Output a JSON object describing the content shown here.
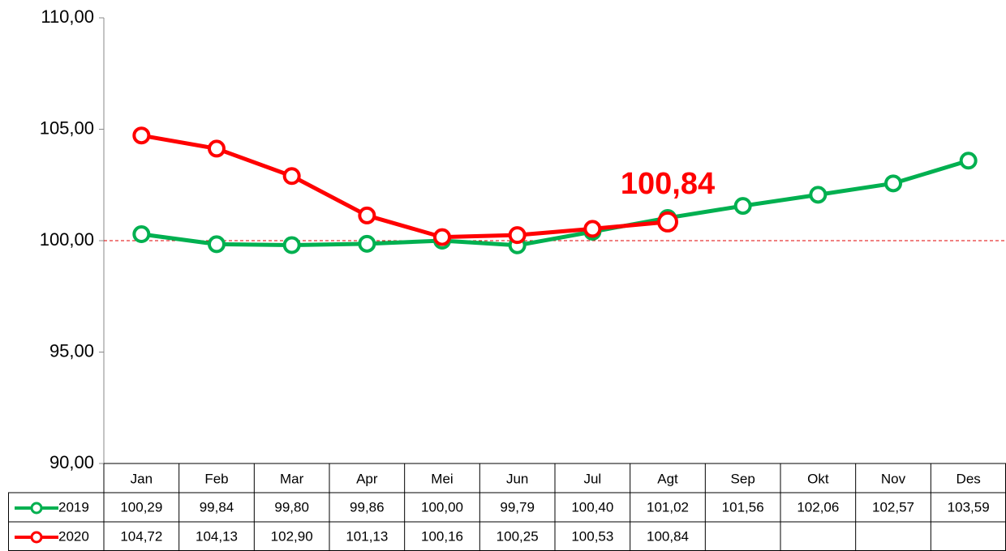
{
  "chart_data": {
    "type": "line",
    "categories": [
      "Jan",
      "Feb",
      "Mar",
      "Apr",
      "Mei",
      "Jun",
      "Jul",
      "Agt",
      "Sep",
      "Okt",
      "Nov",
      "Des"
    ],
    "series": [
      {
        "name": "2019",
        "color": "#00b050",
        "values": [
          100.29,
          99.84,
          99.8,
          99.86,
          100.0,
          99.79,
          100.4,
          101.02,
          101.56,
          102.06,
          102.57,
          103.59
        ],
        "value_labels": [
          "100,29",
          "99,84",
          "99,80",
          "99,86",
          "100,00",
          "99,79",
          "100,40",
          "101,02",
          "101,56",
          "102,06",
          "102,57",
          "103,59"
        ]
      },
      {
        "name": "2020",
        "color": "#ff0000",
        "values": [
          104.72,
          104.13,
          102.9,
          101.13,
          100.16,
          100.25,
          100.53,
          100.84,
          null,
          null,
          null,
          null
        ],
        "value_labels": [
          "104,72",
          "104,13",
          "102,90",
          "101,13",
          "100,16",
          "100,25",
          "100,53",
          "100,84",
          null,
          null,
          null,
          null
        ]
      }
    ],
    "ylim": [
      90,
      110
    ],
    "yticks": [
      {
        "value": 90,
        "label": "90,00"
      },
      {
        "value": 95,
        "label": "95,00"
      },
      {
        "value": 100,
        "label": "100,00"
      },
      {
        "value": 105,
        "label": "105,00"
      },
      {
        "value": 110,
        "label": "110,00"
      }
    ],
    "reference_line": {
      "value": 100,
      "color": "#e00000"
    },
    "highlight": {
      "series": 1,
      "index": 7
    }
  }
}
